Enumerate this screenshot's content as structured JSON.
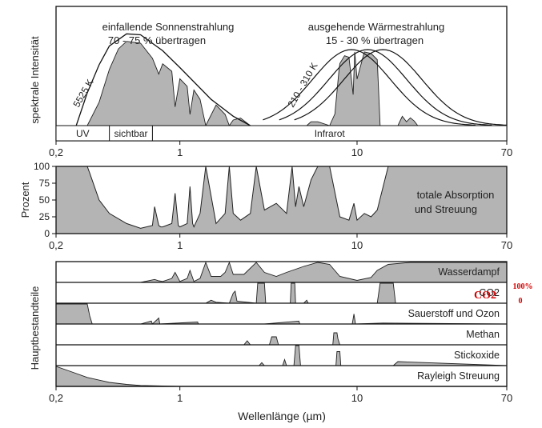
{
  "chart_data": [
    {
      "type": "area",
      "panel": "emission",
      "ylabel": "spektrale Intensität",
      "x_scale": "log",
      "xlim": [
        0.2,
        70
      ],
      "x_ticks": [
        "0,2",
        "1",
        "10",
        "70"
      ],
      "x_tick_values": [
        0.2,
        1,
        10,
        70
      ],
      "bands": [
        "UV",
        "sichtbar",
        "Infrarot"
      ],
      "band_ranges": [
        [
          0.2,
          0.4
        ],
        [
          0.4,
          0.7
        ],
        [
          0.7,
          70
        ]
      ],
      "left_annotation": [
        "einfallende Sonnenstrahlung",
        "70 - 75 % übertragen"
      ],
      "right_annotation": [
        "ausgehende Wärmestrahlung",
        "15 - 30 % übertragen"
      ],
      "solar_curve_label": "5525 K",
      "thermal_curve_label": "210 - 310 K",
      "solar_blackbody": {
        "x": [
          0.26,
          0.3,
          0.35,
          0.4,
          0.5,
          0.6,
          0.8,
          1.0,
          1.5,
          2.0,
          2.5
        ],
        "y": [
          0.0,
          0.35,
          0.65,
          0.85,
          0.98,
          0.97,
          0.8,
          0.62,
          0.28,
          0.1,
          0.0
        ]
      },
      "solar_transmitted": {
        "x": [
          0.3,
          0.35,
          0.4,
          0.45,
          0.5,
          0.6,
          0.7,
          0.76,
          0.8,
          0.9,
          0.94,
          1.0,
          1.1,
          1.14,
          1.2,
          1.3,
          1.4,
          1.6,
          1.8,
          1.9,
          2.0,
          2.2,
          2.5
        ],
        "y": [
          0.0,
          0.25,
          0.6,
          0.82,
          0.9,
          0.88,
          0.72,
          0.55,
          0.66,
          0.58,
          0.2,
          0.5,
          0.42,
          0.12,
          0.38,
          0.28,
          0.0,
          0.22,
          0.12,
          0.0,
          0.06,
          0.08,
          0.0
        ]
      },
      "thermal_blackbody_peaks_um": [
        9.3,
        11.5,
        14
      ],
      "thermal_transmitted": {
        "x": [
          5.2,
          5.5,
          6.0,
          7.0,
          7.5,
          7.9,
          8.0,
          8.5,
          9.0,
          9.5,
          9.7,
          10.0,
          11.0,
          12.0,
          13.0,
          13.5
        ],
        "y": [
          0.0,
          0.05,
          0.05,
          0.0,
          0.15,
          0.7,
          0.8,
          0.9,
          0.88,
          0.4,
          0.95,
          0.6,
          0.95,
          0.93,
          0.85,
          0.0
        ]
      },
      "thermal_small_feature": {
        "x": [
          17,
          18,
          19,
          20,
          21,
          22
        ],
        "y": [
          0.0,
          0.12,
          0.05,
          0.1,
          0.06,
          0.0
        ]
      }
    },
    {
      "type": "area",
      "panel": "total_absorption",
      "ylabel": "Prozent",
      "yticks": [
        0,
        25,
        50,
        75,
        100
      ],
      "ylim": [
        0,
        100
      ],
      "x_scale": "log",
      "xlim": [
        0.2,
        70
      ],
      "x_ticks": [
        "0,2",
        "1",
        "10",
        "70"
      ],
      "x_tick_values": [
        0.2,
        1,
        10,
        70
      ],
      "label": [
        "totale Absorption",
        "und Streuung"
      ],
      "x": [
        0.2,
        0.3,
        0.31,
        0.35,
        0.4,
        0.5,
        0.6,
        0.7,
        0.72,
        0.76,
        0.78,
        0.8,
        0.9,
        0.94,
        0.98,
        1.0,
        1.1,
        1.14,
        1.18,
        1.2,
        1.3,
        1.4,
        1.6,
        1.8,
        1.9,
        2.0,
        2.2,
        2.5,
        2.7,
        3.0,
        3.5,
        4.0,
        4.3,
        4.5,
        4.7,
        5.0,
        5.5,
        6.0,
        7.0,
        8.0,
        9.0,
        9.6,
        10.0,
        11.0,
        12.0,
        13.0,
        15.0,
        20.0,
        70.0
      ],
      "y": [
        100,
        100,
        90,
        50,
        30,
        15,
        8,
        12,
        40,
        12,
        10,
        10,
        15,
        60,
        12,
        10,
        15,
        70,
        15,
        10,
        30,
        100,
        15,
        30,
        100,
        30,
        20,
        30,
        100,
        35,
        45,
        30,
        100,
        40,
        70,
        40,
        80,
        100,
        100,
        25,
        20,
        45,
        20,
        30,
        25,
        35,
        100,
        100,
        100
      ]
    },
    {
      "type": "area",
      "panel": "components",
      "ylabel": "Hauptbestandteile",
      "xlabel": "Wellenlänge (µm)",
      "x_scale": "log",
      "xlim": [
        0.2,
        70
      ],
      "x_ticks": [
        "0,2",
        "1",
        "10",
        "70"
      ],
      "x_tick_values": [
        0.2,
        1,
        10,
        70
      ],
      "annotation": {
        "label": "CO2",
        "scale_max": "100%",
        "scale_min": "0"
      },
      "series": [
        {
          "name": "Wasserdampf",
          "x": [
            0.2,
            0.6,
            0.72,
            0.76,
            0.8,
            0.9,
            0.94,
            1.0,
            1.1,
            1.14,
            1.2,
            1.3,
            1.4,
            1.5,
            1.7,
            1.8,
            1.9,
            2.0,
            2.3,
            2.7,
            3.0,
            3.5,
            4.0,
            5.0,
            6.0,
            7.0,
            8.0,
            10.0,
            12.0,
            13.0,
            15.0,
            20.0,
            70.0
          ],
          "y": [
            0,
            0,
            0.15,
            0.08,
            0.05,
            0.2,
            0.5,
            0.05,
            0.2,
            0.6,
            0.05,
            0.2,
            1.0,
            0.3,
            0.3,
            0.5,
            1.0,
            0.4,
            0.4,
            1.0,
            0.5,
            0.3,
            0.5,
            0.8,
            1.0,
            0.9,
            0.3,
            0.1,
            0.25,
            0.6,
            0.9,
            1.0,
            1.0
          ]
        },
        {
          "name": "CO2",
          "x": [
            0.2,
            1.4,
            1.5,
            1.6,
            1.9,
            2.0,
            2.05,
            2.1,
            2.7,
            2.75,
            3.0,
            3.05,
            4.2,
            4.25,
            4.45,
            4.5,
            5.0,
            5.2,
            5.3,
            10.0,
            13.0,
            13.5,
            16.0,
            16.5,
            70.0
          ],
          "y": [
            0,
            0,
            0.15,
            0.05,
            0,
            0.5,
            0.6,
            0.1,
            0,
            1.0,
            1.0,
            0,
            0,
            1.0,
            1.0,
            0,
            0,
            0.15,
            0,
            0,
            0,
            1.0,
            1.0,
            0,
            0
          ]
        },
        {
          "name": "Sauerstoff und Ozon",
          "x": [
            0.2,
            0.3,
            0.31,
            0.32,
            0.6,
            0.69,
            0.7,
            0.76,
            0.77,
            1.26,
            1.27,
            3.0,
            4.7,
            4.75,
            9.4,
            9.6,
            9.8,
            14.0,
            70.0
          ],
          "y": [
            1.0,
            1.0,
            0.4,
            0,
            0,
            0.15,
            0,
            0.3,
            0,
            0.1,
            0,
            0,
            0.15,
            0,
            0.0,
            0.5,
            0.0,
            0.05,
            0
          ]
        },
        {
          "name": "Methan",
          "x": [
            0.2,
            2.3,
            2.4,
            2.5,
            3.2,
            3.3,
            3.5,
            3.6,
            7.3,
            7.4,
            7.7,
            7.8,
            8.0,
            70.0
          ],
          "y": [
            0,
            0,
            0.2,
            0,
            0,
            0.4,
            0.4,
            0,
            0,
            0.6,
            0.6,
            0.3,
            0,
            0
          ]
        },
        {
          "name": "Stickoxide",
          "x": [
            0.2,
            2.8,
            2.9,
            3.0,
            3.8,
            3.9,
            4.0,
            4.4,
            4.5,
            4.7,
            4.8,
            7.6,
            7.7,
            8.0,
            8.1,
            16.0,
            17.0,
            70.0
          ],
          "y": [
            0,
            0,
            0.15,
            0,
            0,
            0.3,
            0,
            0,
            1.0,
            1.0,
            0,
            0,
            0.7,
            0.7,
            0,
            0,
            0.2,
            0
          ]
        },
        {
          "name": "Rayleigh Streuung",
          "x": [
            0.2,
            0.25,
            0.3,
            0.4,
            0.5,
            0.6,
            0.8,
            1.0,
            70.0
          ],
          "y": [
            1.0,
            0.7,
            0.45,
            0.2,
            0.1,
            0.05,
            0.02,
            0,
            0
          ]
        }
      ]
    }
  ]
}
